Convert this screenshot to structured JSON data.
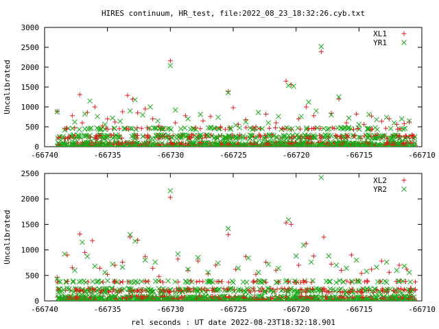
{
  "figure": {
    "title": "HIRES continuum, HR_test, file:2022_08_23_18:32:26.cyb.txt",
    "xlabel": "rel seconds : UT date 2022-08-23T18:32:18.901"
  },
  "colors": {
    "red": "#e41a1c",
    "green": "#1aaa1a",
    "axis": "#000000"
  },
  "chart_data": [
    {
      "type": "scatter",
      "ylabel": "Uncalibrated",
      "xlim": [
        -66740,
        -66710
      ],
      "ylim": [
        0,
        3000
      ],
      "xticks": [
        -66740,
        -66735,
        -66730,
        -66725,
        -66720,
        -66715,
        -66710
      ],
      "yticks": [
        0,
        500,
        1000,
        1500,
        2000,
        2500,
        3000
      ],
      "legend_position": "top-right",
      "series": [
        {
          "name": "XL1",
          "marker": "plus",
          "color": "#e41a1c",
          "x": [
            -66739.0,
            -66738.4,
            -66737.8,
            -66737.2,
            -66737.0,
            -66736.6,
            -66736.0,
            -66735.4,
            -66735.0,
            -66734.4,
            -66733.8,
            -66733.4,
            -66733.0,
            -66732.6,
            -66732.0,
            -66731.4,
            -66730.9,
            -66730.0,
            -66729.6,
            -66728.8,
            -66728.0,
            -66727.4,
            -66726.8,
            -66726.0,
            -66725.4,
            -66725.0,
            -66724.6,
            -66724.0,
            -66723.2,
            -66722.4,
            -66721.6,
            -66720.8,
            -66720.4,
            -66719.8,
            -66719.2,
            -66718.6,
            -66718.0,
            -66717.2,
            -66716.6,
            -66716.0,
            -66715.2,
            -66714.6,
            -66714.0,
            -66713.2,
            -66712.6,
            -66712.0,
            -66711.4,
            -66711.0
          ],
          "y": [
            890,
            450,
            780,
            1310,
            600,
            860,
            1000,
            520,
            700,
            620,
            880,
            1290,
            1200,
            850,
            950,
            700,
            520,
            2160,
            600,
            780,
            480,
            650,
            760,
            500,
            1390,
            980,
            560,
            680,
            500,
            820,
            600,
            1650,
            1560,
            700,
            1000,
            780,
            2390,
            840,
            1200,
            600,
            820,
            560,
            770,
            640,
            700,
            560,
            580,
            620
          ]
        },
        {
          "name": "YR1",
          "marker": "cross",
          "color": "#1aaa1a",
          "x": [
            -66739.0,
            -66738.4,
            -66737.6,
            -66736.8,
            -66736.4,
            -66735.8,
            -66735.2,
            -66734.6,
            -66734.0,
            -66733.2,
            -66732.8,
            -66732.2,
            -66731.6,
            -66731.0,
            -66730.0,
            -66729.6,
            -66728.6,
            -66727.6,
            -66726.8,
            -66726.2,
            -66725.4,
            -66724.8,
            -66724.0,
            -66723.0,
            -66722.2,
            -66721.4,
            -66720.6,
            -66720.2,
            -66719.6,
            -66719.0,
            -66718.4,
            -66718.0,
            -66717.2,
            -66716.6,
            -66715.8,
            -66715.0,
            -66714.2,
            -66713.6,
            -66712.8,
            -66712.2,
            -66711.6,
            -66711.0
          ],
          "y": [
            880,
            420,
            620,
            820,
            1150,
            760,
            560,
            720,
            640,
            900,
            1180,
            800,
            1000,
            650,
            2040,
            920,
            700,
            810,
            480,
            740,
            1360,
            540,
            620,
            860,
            600,
            760,
            1540,
            1520,
            760,
            1120,
            900,
            2520,
            800,
            1250,
            720,
            560,
            810,
            680,
            740,
            600,
            700,
            650
          ]
        }
      ]
    },
    {
      "type": "scatter",
      "ylabel": "Uncalibrated",
      "xlim": [
        -66740,
        -66710
      ],
      "ylim": [
        0,
        2500
      ],
      "xticks": [
        -66740,
        -66735,
        -66730,
        -66725,
        -66720,
        -66715,
        -66710
      ],
      "yticks": [
        0,
        500,
        1000,
        1500,
        2000,
        2500
      ],
      "legend_position": "top-right",
      "series": [
        {
          "name": "XL2",
          "marker": "plus",
          "color": "#e41a1c",
          "x": [
            -66739.0,
            -66738.2,
            -66737.8,
            -66737.2,
            -66736.8,
            -66736.2,
            -66735.6,
            -66735.0,
            -66734.4,
            -66733.8,
            -66733.2,
            -66732.6,
            -66732.0,
            -66731.4,
            -66730.9,
            -66730.0,
            -66729.4,
            -66728.6,
            -66727.8,
            -66727.0,
            -66726.4,
            -66725.4,
            -66724.8,
            -66724.0,
            -66723.2,
            -66722.4,
            -66721.6,
            -66720.8,
            -66720.4,
            -66719.8,
            -66719.2,
            -66718.6,
            -66717.8,
            -66717.2,
            -66716.4,
            -66715.6,
            -66714.8,
            -66714.0,
            -66713.2,
            -66712.6,
            -66711.8,
            -66711.2
          ],
          "y": [
            460,
            900,
            650,
            1310,
            950,
            1180,
            640,
            520,
            700,
            760,
            1250,
            1190,
            870,
            640,
            480,
            2030,
            820,
            600,
            780,
            530,
            700,
            1300,
            620,
            870,
            520,
            760,
            600,
            1530,
            1500,
            700,
            1120,
            880,
            1250,
            720,
            600,
            900,
            540,
            620,
            780,
            560,
            700,
            620
          ]
        },
        {
          "name": "YR2",
          "marker": "cross",
          "color": "#1aaa1a",
          "x": [
            -66739.0,
            -66738.4,
            -66737.6,
            -66737.0,
            -66736.6,
            -66736.0,
            -66735.2,
            -66734.6,
            -66733.8,
            -66733.2,
            -66732.8,
            -66732.0,
            -66731.2,
            -66730.0,
            -66729.4,
            -66728.6,
            -66727.8,
            -66727.0,
            -66726.2,
            -66725.4,
            -66724.6,
            -66723.8,
            -66723.0,
            -66722.2,
            -66721.4,
            -66720.6,
            -66720.0,
            -66719.4,
            -66718.8,
            -66718.0,
            -66717.4,
            -66716.8,
            -66716.0,
            -66715.2,
            -66714.4,
            -66713.6,
            -66712.8,
            -66712.0,
            -66711.4,
            -66711.0
          ],
          "y": [
            430,
            920,
            600,
            1150,
            870,
            680,
            560,
            720,
            660,
            1300,
            1170,
            800,
            760,
            2160,
            920,
            620,
            850,
            560,
            740,
            1420,
            640,
            840,
            560,
            720,
            640,
            1590,
            880,
            1090,
            760,
            2420,
            880,
            700,
            640,
            800,
            580,
            660,
            760,
            600,
            680,
            560
          ]
        }
      ]
    }
  ]
}
